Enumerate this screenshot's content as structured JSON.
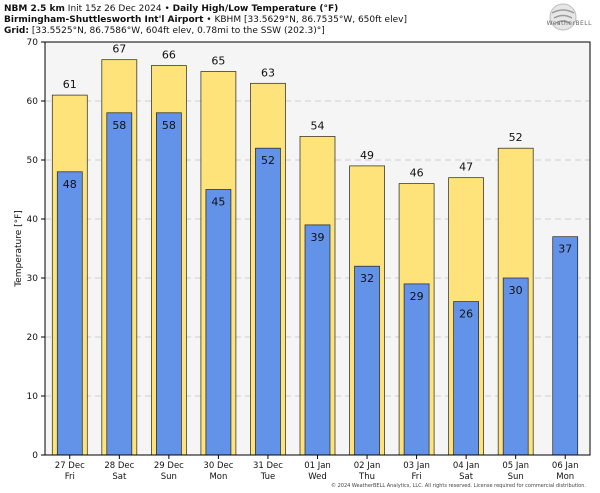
{
  "header": {
    "model": "NBM 2.5 km",
    "init": "Init 15z 26 Dec 2024",
    "title": "Daily High/Low Temperature (°F)",
    "station": "Birmingham-Shuttlesworth Int'l Airport",
    "station_info": "KBHM [33.5629°N, 86.7535°W, 650ft elev]",
    "grid_label": "Grid",
    "grid_info": "[33.5525°N, 86.7586°W, 604ft elev, 0.78mi to the SSW (202.3)°]"
  },
  "logo": {
    "text": "WeatherBELL"
  },
  "footer": "© 2024 WeatherBELL Analytics, LLC. All rights reserved. License required for commercial distribution.",
  "colors": {
    "high": "#fde37a",
    "low": "#6393e8",
    "plot_bg": "#f5f5f5",
    "grid": "#d0d0d0"
  },
  "chart_data": {
    "type": "bar",
    "categories": [
      "27 Dec\nFri",
      "28 Dec\nSat",
      "29 Dec\nSun",
      "30 Dec\nMon",
      "31 Dec\nTue",
      "01 Jan\nWed",
      "02 Jan\nThu",
      "03 Jan\nFri",
      "04 Jan\nSat",
      "05 Jan\nSun",
      "06 Jan\nMon"
    ],
    "series": [
      {
        "name": "",
        "values": [
          61,
          67,
          66,
          65,
          63,
          54,
          49,
          46,
          47,
          52,
          null
        ]
      },
      {
        "name": "",
        "values": [
          48,
          58,
          58,
          45,
          52,
          39,
          32,
          29,
          26,
          30,
          37
        ]
      }
    ],
    "ylabel": "Temperature [°F]",
    "xlabel": "",
    "ylim": [
      0,
      70
    ],
    "yticks": [
      0,
      10,
      20,
      30,
      40,
      50,
      60,
      70
    ],
    "grid": true
  }
}
